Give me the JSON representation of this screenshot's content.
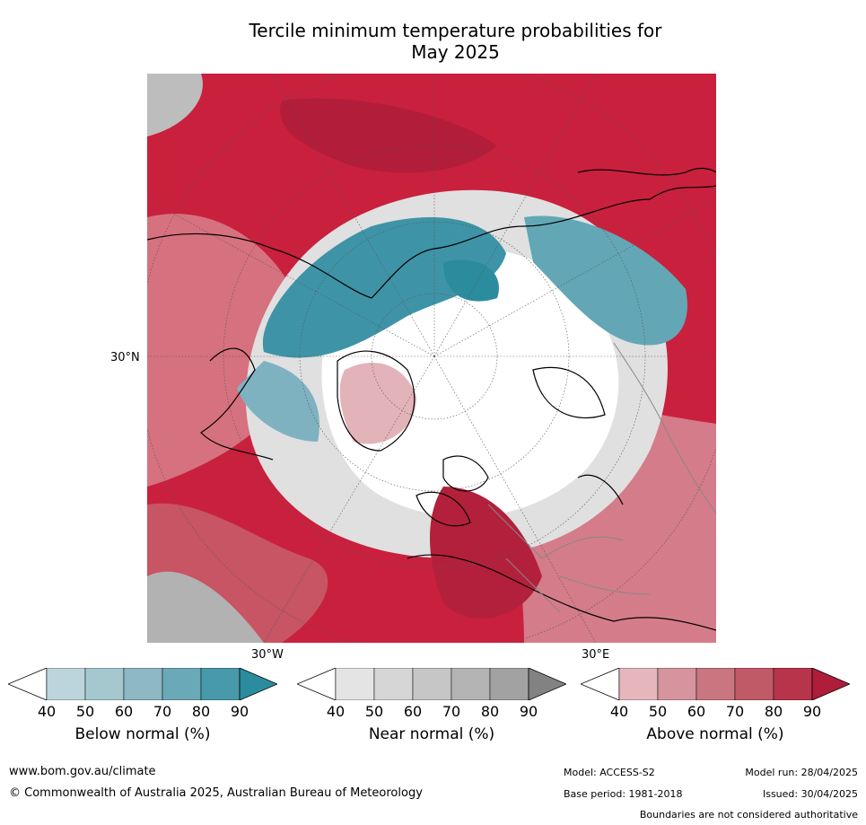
{
  "title": {
    "line1": "Tercile minimum temperature probabilities for",
    "line2": "May 2025"
  },
  "map": {
    "projection": "north-polar-stereographic",
    "lat_label": "30°N",
    "lon_labels": [
      "30°W",
      "30°E"
    ]
  },
  "colorbars": [
    {
      "key": "below",
      "title": "Below normal (%)",
      "ticks": [
        "40",
        "50",
        "60",
        "70",
        "80",
        "90"
      ],
      "colors": [
        "#ffffff",
        "#bcd5dc",
        "#a5c8cf",
        "#8db8c4",
        "#6aa9b7",
        "#4899a9",
        "#2b8c9e"
      ]
    },
    {
      "key": "near",
      "title": "Near normal (%)",
      "ticks": [
        "40",
        "50",
        "60",
        "70",
        "80",
        "90"
      ],
      "colors": [
        "#ffffff",
        "#e4e4e4",
        "#d6d6d6",
        "#c6c6c6",
        "#b4b4b4",
        "#a2a2a2",
        "#828282"
      ]
    },
    {
      "key": "above",
      "title": "Above normal (%)",
      "ticks": [
        "40",
        "50",
        "60",
        "70",
        "80",
        "90"
      ],
      "colors": [
        "#ffffff",
        "#e5b7bd",
        "#d6959e",
        "#c97680",
        "#c15a67",
        "#b7344a",
        "#ae1d3a"
      ]
    }
  ],
  "footer": {
    "website": "www.bom.gov.au/climate",
    "copyright": "© Commonwealth of Australia 2025, Australian Bureau of Meteorology",
    "model": "Model: ACCESS-S2",
    "model_run": "Model run: 28/04/2025",
    "base_period": "Base period: 1981-2018",
    "issued": "Issued: 30/04/2025",
    "disclaimer": "Boundaries are not considered authoritative"
  }
}
